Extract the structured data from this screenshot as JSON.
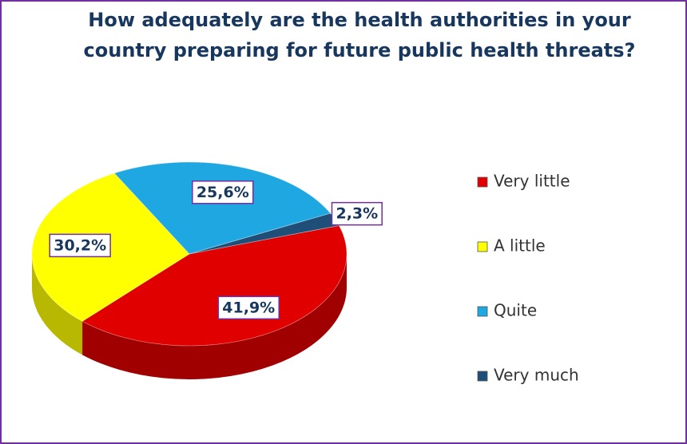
{
  "chart_data": {
    "type": "pie",
    "title": "How adequately are the health authorities in your country preparing for future public health threats?",
    "categories": [
      "Very little",
      "A little",
      "Quite",
      "Very much"
    ],
    "values": [
      41.9,
      30.2,
      25.6,
      2.3
    ],
    "value_labels": [
      "41,9%",
      "30,2%",
      "25,6%",
      "2,3%"
    ],
    "colors": [
      "#e00000",
      "#ffff00",
      "#1ea7e1",
      "#1f4e79"
    ],
    "legend": "right"
  }
}
